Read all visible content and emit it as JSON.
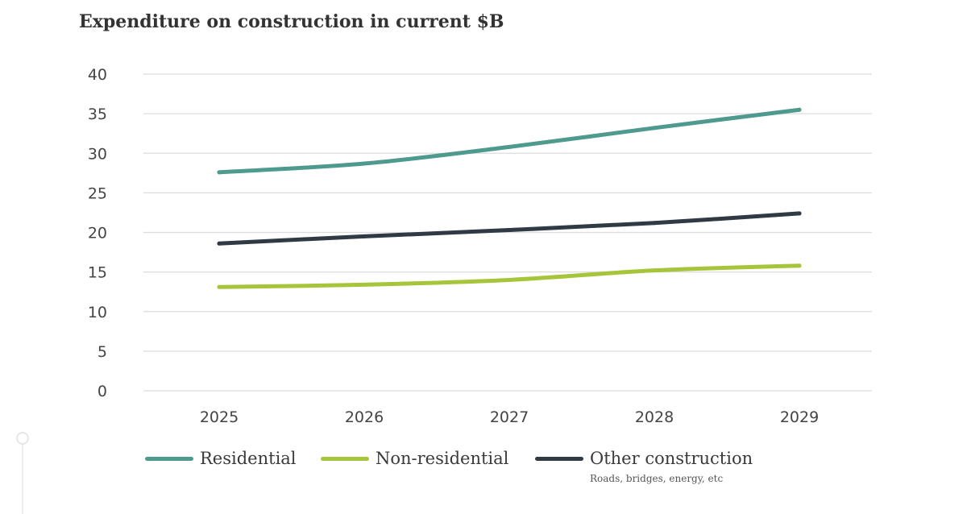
{
  "chart_data": {
    "type": "line",
    "title": "Expenditure on construction in current $B",
    "x": [
      "2025",
      "2026",
      "2027",
      "2028",
      "2029"
    ],
    "ylim": [
      0,
      40
    ],
    "yticks": [
      "0",
      "5",
      "10",
      "15",
      "20",
      "25",
      "30",
      "35",
      "40"
    ],
    "grid": true,
    "legend_position": "bottom",
    "series": [
      {
        "name": "Residential",
        "color": "#4f9a8e",
        "values": [
          27.6,
          28.7,
          30.8,
          33.2,
          35.5
        ]
      },
      {
        "name": "Non-residential",
        "color": "#a6c53b",
        "values": [
          13.1,
          13.4,
          14.0,
          15.2,
          15.8
        ]
      },
      {
        "name": "Other construction",
        "color": "#2f3a45",
        "values": [
          18.6,
          19.5,
          20.3,
          21.2,
          22.4
        ]
      }
    ],
    "legend_note": "Roads, bridges, energy, etc"
  }
}
